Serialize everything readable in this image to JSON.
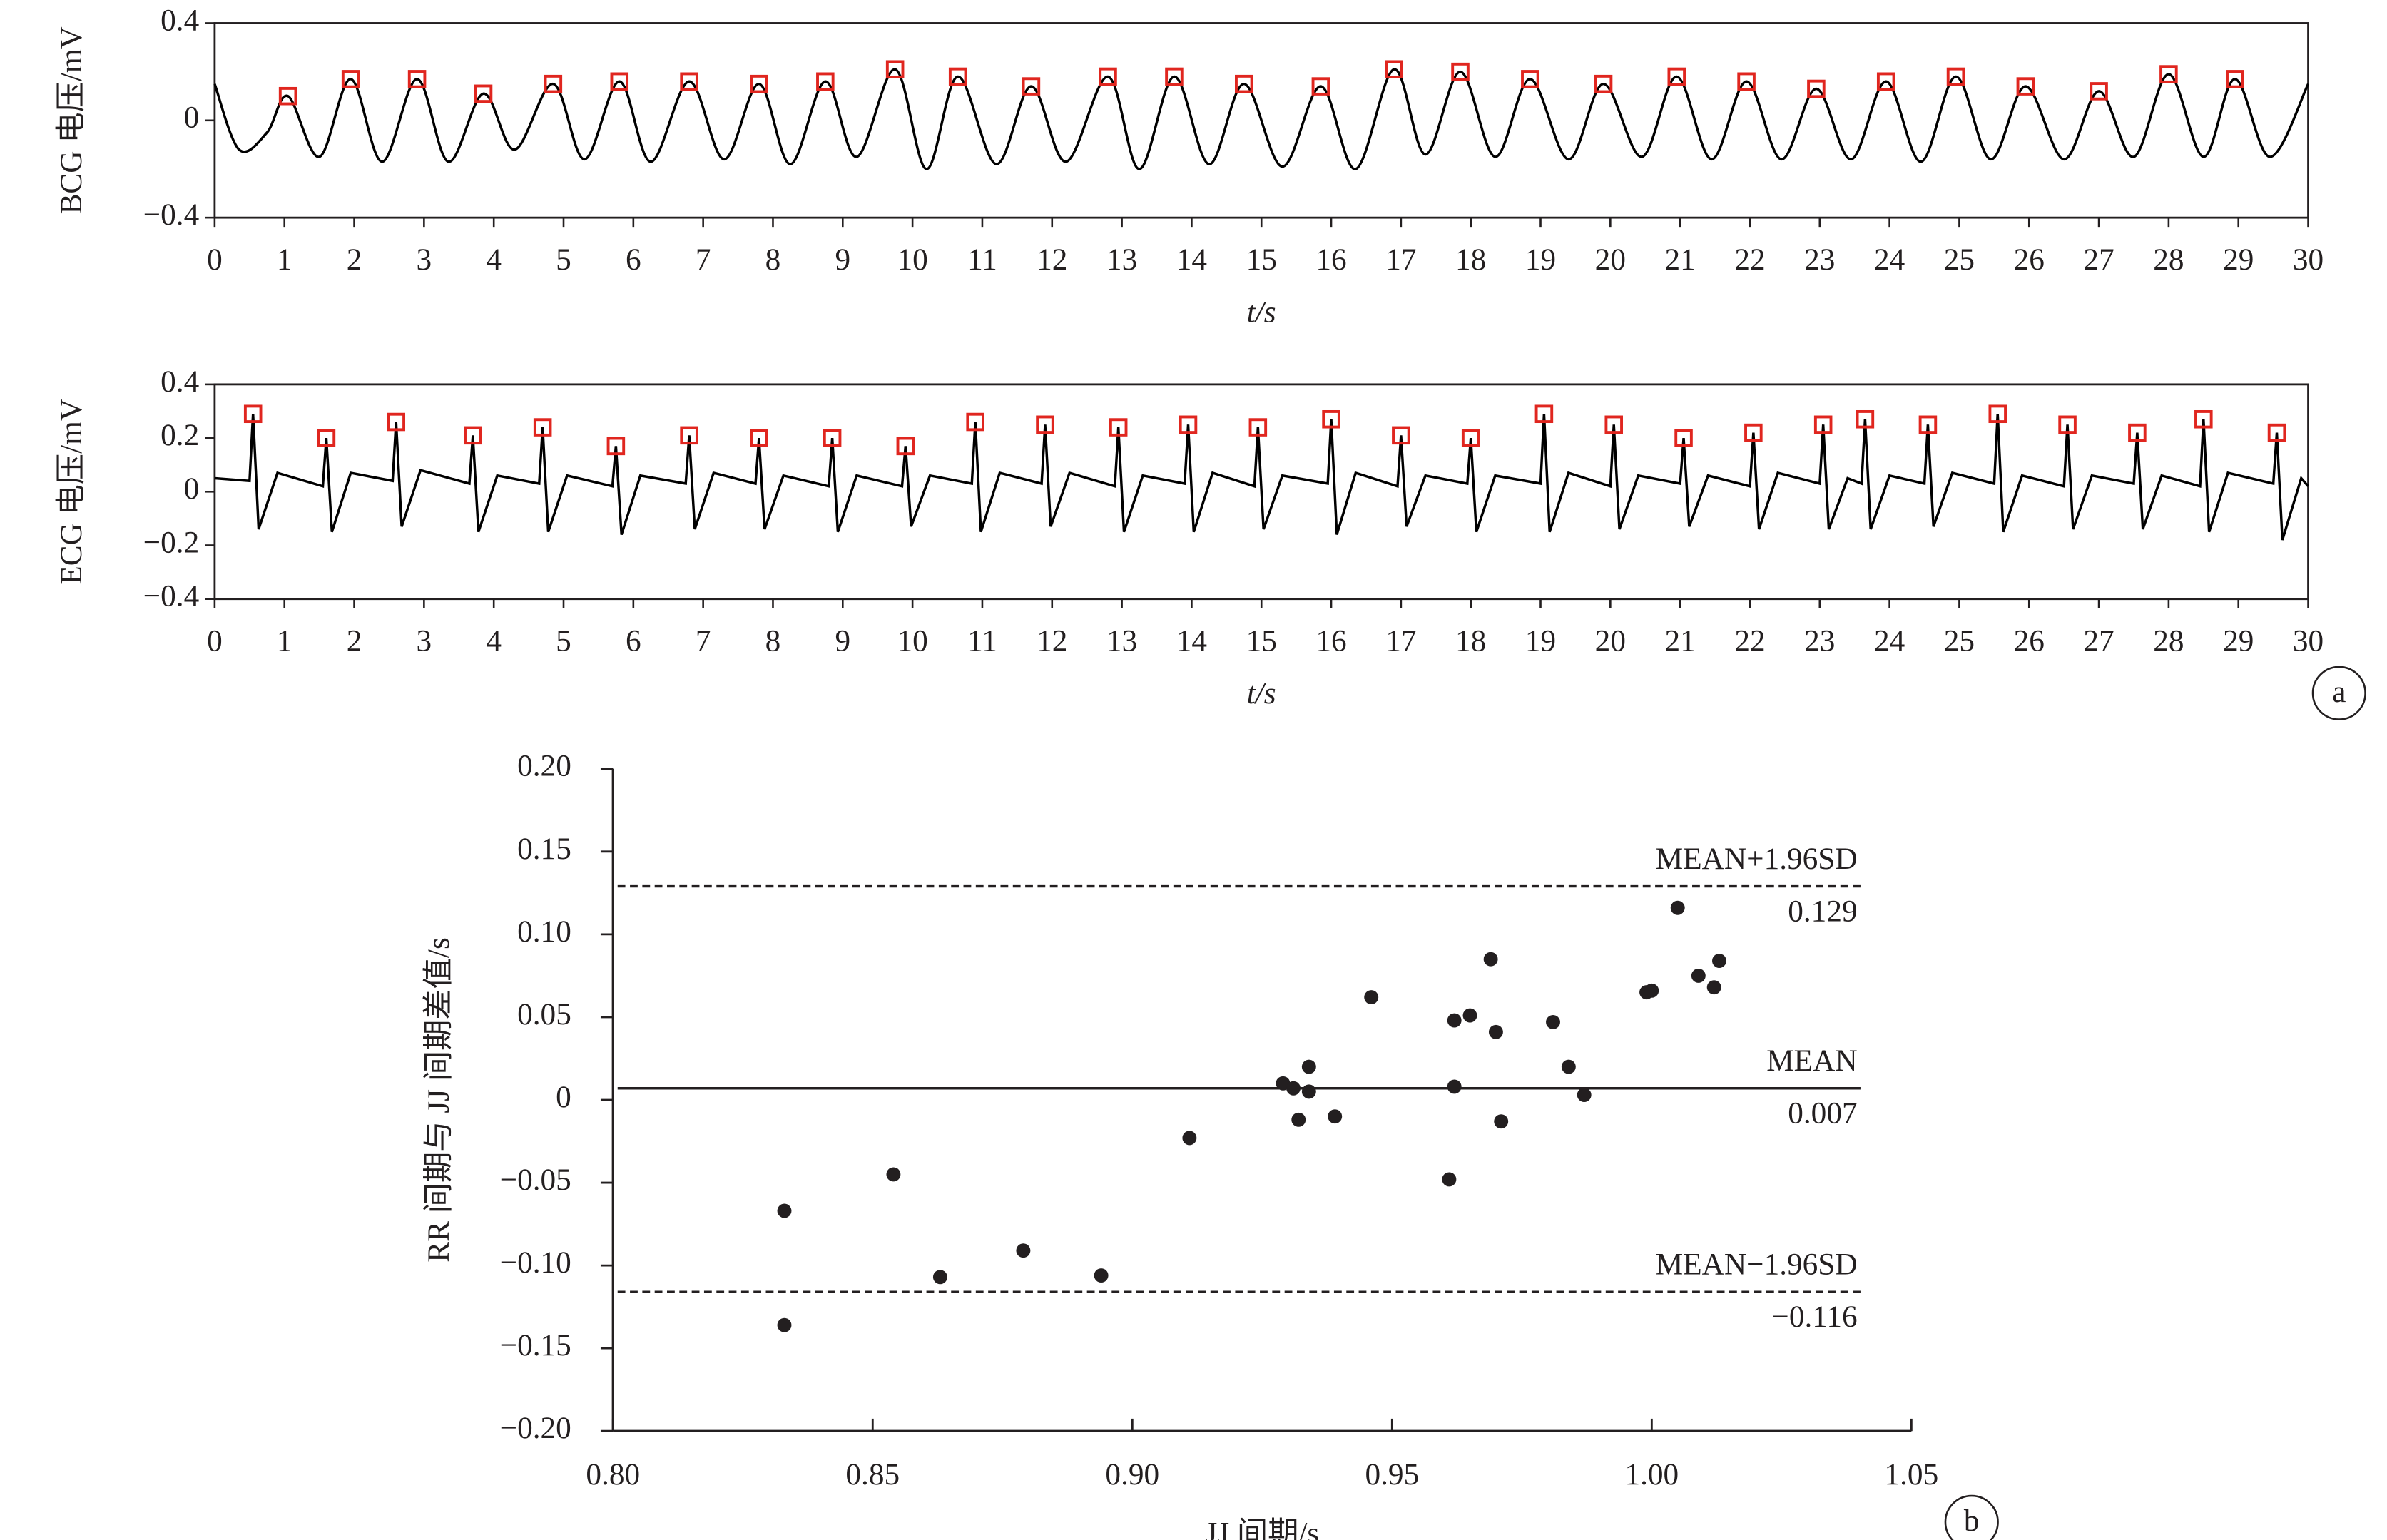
{
  "panel_labels": [
    "a",
    "b"
  ],
  "chart_data": [
    {
      "type": "line",
      "ylabel": "BCG 电压/mV",
      "xlabel": "t/s",
      "xlim": [
        0,
        30
      ],
      "xticks": [
        0,
        1,
        2,
        3,
        4,
        5,
        6,
        7,
        8,
        9,
        10,
        11,
        12,
        13,
        14,
        15,
        16,
        17,
        18,
        19,
        20,
        21,
        22,
        23,
        24,
        25,
        26,
        27,
        28,
        29,
        30
      ],
      "ylim": [
        -0.4,
        0.4
      ],
      "yticks": [
        {
          "value": -0.4,
          "label": "−0.4"
        },
        0,
        0.4
      ],
      "series": [
        {
          "color": "#000000",
          "smooth": true,
          "x": [
            0,
            0.35,
            0.75,
            1.05,
            1.5,
            1.95,
            2.4,
            2.9,
            3.35,
            3.85,
            4.3,
            4.85,
            5.3,
            5.8,
            6.25,
            6.8,
            7.3,
            7.8,
            8.25,
            8.75,
            9.2,
            9.75,
            10.2,
            10.65,
            11.2,
            11.7,
            12.2,
            12.8,
            13.25,
            13.75,
            14.25,
            14.75,
            15.3,
            15.85,
            16.35,
            16.9,
            17.35,
            17.85,
            18.35,
            18.85,
            19.4,
            19.9,
            20.45,
            20.95,
            21.45,
            21.95,
            22.45,
            22.95,
            23.45,
            23.95,
            24.45,
            24.95,
            25.45,
            25.95,
            26.5,
            27.0,
            27.5,
            28.0,
            28.5,
            28.95,
            29.45,
            30
          ],
          "values": [
            0.15,
            -0.12,
            -0.05,
            0.1,
            -0.15,
            0.17,
            -0.17,
            0.17,
            -0.17,
            0.11,
            -0.12,
            0.15,
            -0.16,
            0.16,
            -0.17,
            0.16,
            -0.16,
            0.15,
            -0.18,
            0.16,
            -0.15,
            0.21,
            -0.2,
            0.18,
            -0.18,
            0.14,
            -0.17,
            0.18,
            -0.2,
            0.18,
            -0.18,
            0.15,
            -0.19,
            0.14,
            -0.2,
            0.21,
            -0.14,
            0.2,
            -0.15,
            0.17,
            -0.16,
            0.15,
            -0.15,
            0.18,
            -0.16,
            0.16,
            -0.16,
            0.13,
            -0.16,
            0.16,
            -0.17,
            0.18,
            -0.16,
            0.14,
            -0.16,
            0.12,
            -0.15,
            0.19,
            -0.15,
            0.17,
            -0.15,
            0.15
          ]
        },
        {
          "color": "#e0261f",
          "marker": "square",
          "x": [
            1.05,
            1.95,
            2.9,
            3.85,
            4.85,
            5.8,
            6.8,
            7.8,
            8.75,
            9.75,
            10.65,
            11.7,
            12.8,
            13.75,
            14.75,
            15.85,
            16.9,
            17.85,
            18.85,
            19.9,
            20.95,
            21.95,
            22.95,
            23.95,
            24.95,
            25.95,
            27.0,
            28.0,
            28.95
          ],
          "values": [
            0.1,
            0.17,
            0.17,
            0.11,
            0.15,
            0.16,
            0.16,
            0.15,
            0.16,
            0.21,
            0.18,
            0.14,
            0.18,
            0.18,
            0.15,
            0.14,
            0.21,
            0.2,
            0.17,
            0.15,
            0.18,
            0.16,
            0.13,
            0.16,
            0.18,
            0.14,
            0.12,
            0.19,
            0.17
          ]
        }
      ]
    },
    {
      "type": "line",
      "ylabel": "ECG 电压/mV",
      "xlabel": "t/s",
      "xlim": [
        0,
        30
      ],
      "xticks": [
        0,
        1,
        2,
        3,
        4,
        5,
        6,
        7,
        8,
        9,
        10,
        11,
        12,
        13,
        14,
        15,
        16,
        17,
        18,
        19,
        20,
        21,
        22,
        23,
        24,
        25,
        26,
        27,
        28,
        29,
        30
      ],
      "ylim": [
        -0.4,
        0.4
      ],
      "yticks": [
        {
          "value": -0.4,
          "label": "−0.4"
        },
        {
          "value": -0.2,
          "label": "−0.2"
        },
        0,
        0.2,
        0.4
      ],
      "series": [
        {
          "color": "#000000",
          "smooth": false,
          "x": [
            0,
            0.5,
            0.55,
            0.63,
            0.9,
            1.55,
            1.6,
            1.68,
            1.95,
            2.55,
            2.6,
            2.68,
            2.95,
            3.65,
            3.7,
            3.78,
            4.05,
            4.65,
            4.7,
            4.78,
            5.05,
            5.7,
            5.75,
            5.83,
            6.1,
            6.75,
            6.8,
            6.88,
            7.15,
            7.75,
            7.8,
            7.88,
            8.15,
            8.8,
            8.85,
            8.93,
            9.2,
            9.85,
            9.9,
            9.98,
            10.25,
            10.85,
            10.9,
            10.98,
            11.25,
            11.85,
            11.9,
            11.98,
            12.25,
            12.9,
            12.95,
            13.03,
            13.3,
            13.9,
            13.95,
            14.03,
            14.3,
            14.9,
            14.95,
            15.03,
            15.3,
            15.95,
            16.0,
            16.08,
            16.35,
            16.95,
            17.0,
            17.08,
            17.35,
            17.95,
            18.0,
            18.08,
            18.35,
            19.0,
            19.05,
            19.13,
            19.4,
            20.0,
            20.05,
            20.13,
            20.4,
            21.0,
            21.05,
            21.13,
            21.4,
            22.0,
            22.05,
            22.13,
            22.4,
            23.0,
            23.05,
            23.13,
            23.4,
            23.6,
            23.65,
            23.73,
            24.0,
            24.5,
            24.55,
            24.63,
            24.9,
            25.5,
            25.55,
            25.63,
            25.9,
            26.5,
            26.55,
            26.63,
            26.9,
            27.5,
            27.55,
            27.63,
            27.9,
            28.45,
            28.5,
            28.58,
            28.85,
            29.5,
            29.55,
            29.63,
            29.9,
            30
          ],
          "values": [
            0.05,
            0.04,
            0.29,
            -0.14,
            0.07,
            0.02,
            0.2,
            -0.15,
            0.07,
            0.04,
            0.26,
            -0.13,
            0.08,
            0.03,
            0.21,
            -0.15,
            0.06,
            0.03,
            0.24,
            -0.15,
            0.06,
            0.02,
            0.17,
            -0.16,
            0.06,
            0.03,
            0.21,
            -0.14,
            0.07,
            0.03,
            0.2,
            -0.14,
            0.06,
            0.02,
            0.2,
            -0.15,
            0.06,
            0.02,
            0.17,
            -0.13,
            0.06,
            0.03,
            0.26,
            -0.15,
            0.07,
            0.03,
            0.25,
            -0.13,
            0.07,
            0.02,
            0.24,
            -0.15,
            0.06,
            0.03,
            0.25,
            -0.15,
            0.07,
            0.02,
            0.24,
            -0.14,
            0.06,
            0.03,
            0.27,
            -0.16,
            0.07,
            0.02,
            0.21,
            -0.13,
            0.06,
            0.03,
            0.2,
            -0.15,
            0.06,
            0.03,
            0.29,
            -0.15,
            0.07,
            0.02,
            0.25,
            -0.14,
            0.06,
            0.03,
            0.2,
            -0.13,
            0.06,
            0.02,
            0.22,
            -0.14,
            0.07,
            0.03,
            0.25,
            -0.14,
            0.05,
            0.03,
            0.27,
            -0.14,
            0.06,
            0.03,
            0.25,
            -0.13,
            0.07,
            0.03,
            0.29,
            -0.15,
            0.06,
            0.02,
            0.25,
            -0.14,
            0.06,
            0.03,
            0.22,
            -0.14,
            0.06,
            0.02,
            0.27,
            -0.15,
            0.07,
            0.03,
            0.22,
            -0.18,
            0.05,
            0.02
          ]
        },
        {
          "color": "#e0261f",
          "marker": "square",
          "x": [
            0.55,
            1.6,
            2.6,
            3.7,
            4.7,
            5.75,
            6.8,
            7.8,
            8.85,
            9.9,
            10.9,
            11.9,
            12.95,
            13.95,
            14.95,
            16.0,
            17.0,
            18.0,
            19.05,
            20.05,
            21.05,
            22.05,
            23.05,
            23.65,
            24.55,
            25.55,
            26.55,
            27.55,
            28.5,
            29.55
          ],
          "values": [
            0.29,
            0.2,
            0.26,
            0.21,
            0.24,
            0.17,
            0.21,
            0.2,
            0.2,
            0.17,
            0.26,
            0.25,
            0.24,
            0.25,
            0.24,
            0.27,
            0.21,
            0.2,
            0.29,
            0.25,
            0.2,
            0.22,
            0.25,
            0.27,
            0.25,
            0.29,
            0.25,
            0.22,
            0.27,
            0.22
          ]
        }
      ]
    },
    {
      "type": "scatter",
      "xlabel": "JJ 间期/s",
      "ylabel": "RR 间期与 JJ 间期差值/s",
      "xlim": [
        0.8,
        1.05
      ],
      "xticks": [
        {
          "value": 0.8,
          "label": "0.80"
        },
        0.85,
        {
          "value": 0.9,
          "label": "0.90"
        },
        0.95,
        {
          "value": 1.0,
          "label": "1.00"
        },
        1.05
      ],
      "ylim": [
        -0.2,
        0.2
      ],
      "yticks": [
        {
          "value": -0.2,
          "label": "−0.20"
        },
        {
          "value": -0.15,
          "label": "−0.15"
        },
        {
          "value": -0.1,
          "label": "−0.10"
        },
        {
          "value": -0.05,
          "label": "−0.05"
        },
        0,
        0.05,
        {
          "value": 0.1,
          "label": "0.10"
        },
        0.15,
        {
          "value": 0.2,
          "label": "0.20"
        }
      ],
      "color": "#231f20",
      "x": [
        0.833,
        0.833,
        0.854,
        0.863,
        0.879,
        0.894,
        0.911,
        0.929,
        0.931,
        0.932,
        0.934,
        0.934,
        0.939,
        0.946,
        0.961,
        0.962,
        0.962,
        0.965,
        0.969,
        0.97,
        0.971,
        0.981,
        0.984,
        0.987,
        0.999,
        1.0,
        1.005,
        1.009,
        1.012,
        1.013
      ],
      "values": [
        -0.067,
        -0.136,
        -0.045,
        -0.107,
        -0.091,
        -0.106,
        -0.023,
        0.01,
        0.007,
        -0.012,
        0.02,
        0.005,
        -0.01,
        0.062,
        -0.048,
        0.048,
        0.008,
        0.051,
        0.085,
        0.041,
        -0.013,
        0.047,
        0.02,
        0.003,
        0.065,
        0.066,
        0.116,
        0.075,
        0.068,
        0.084
      ],
      "reference_lines": [
        {
          "label": "MEAN+1.96SD",
          "value": 0.129,
          "dashed": true
        },
        {
          "label": "MEAN",
          "value": 0.007,
          "dashed": false
        },
        {
          "label": "MEAN−1.96SD",
          "value": -0.116,
          "value_label": "−0.116",
          "dashed": true
        }
      ]
    }
  ]
}
